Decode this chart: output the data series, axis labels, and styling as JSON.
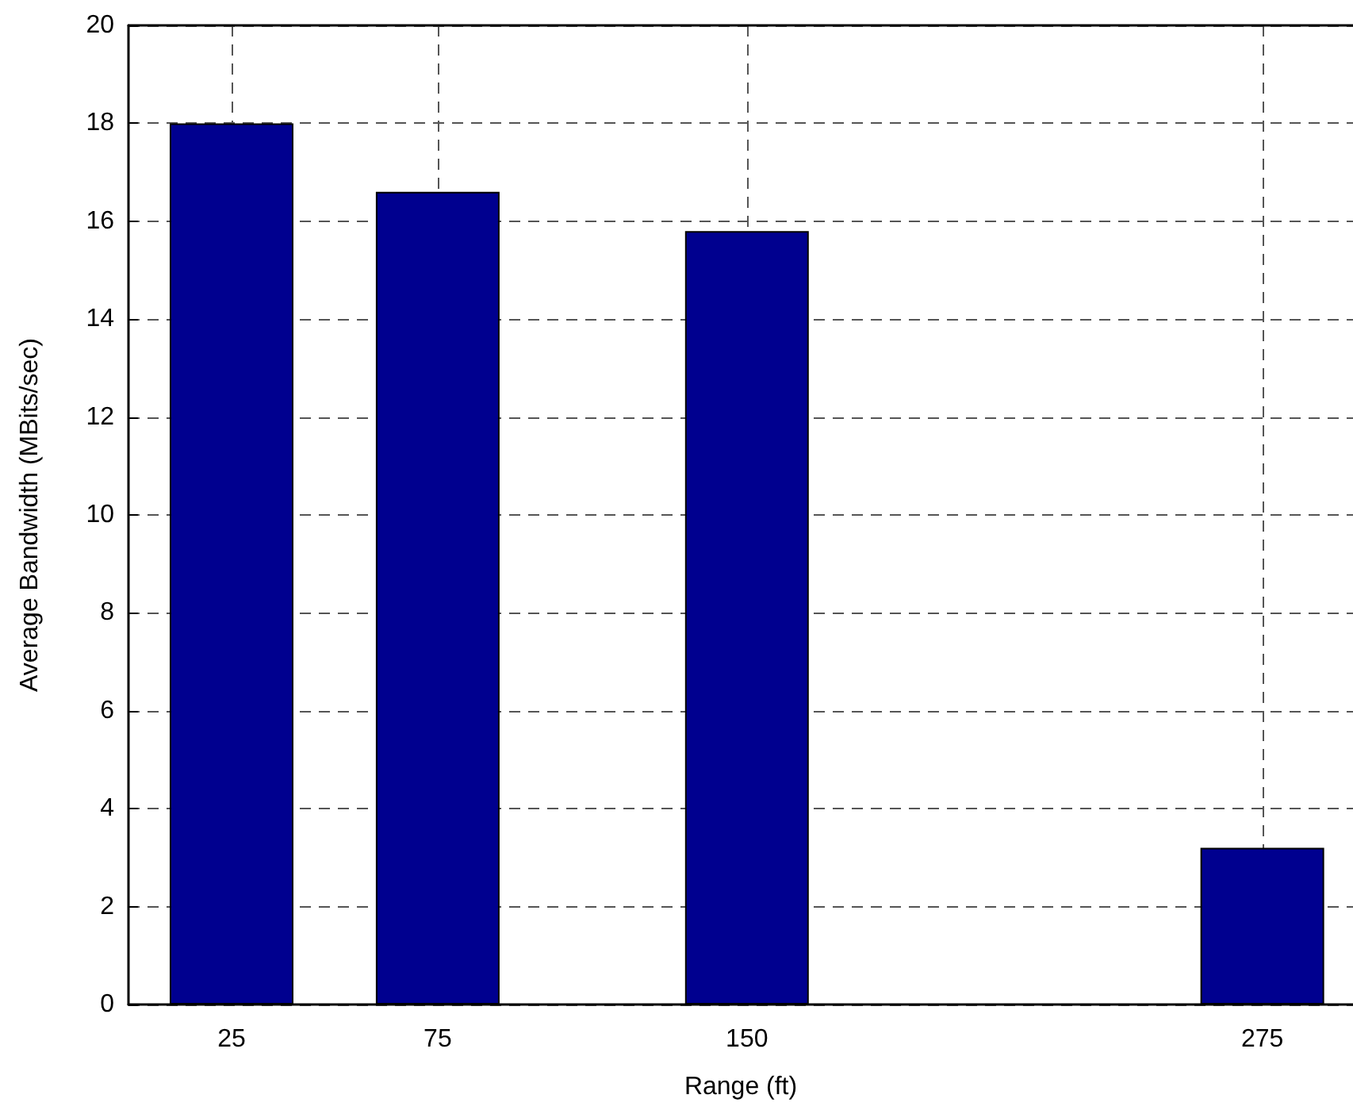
{
  "chart_data": {
    "type": "bar",
    "xlabel": "Range (ft)",
    "ylabel": "Average Bandwidth (MBits/sec)",
    "x": [
      25,
      75,
      150,
      275
    ],
    "values": [
      18,
      16.6,
      15.8,
      3.2
    ],
    "color": "#00008f",
    "xlim": [
      0,
      297
    ],
    "ylim": [
      0,
      20
    ],
    "xticks": [
      25,
      75,
      150,
      275
    ],
    "yticks": [
      0,
      2,
      4,
      6,
      8,
      10,
      12,
      14,
      16,
      18,
      20
    ],
    "grid": true
  }
}
